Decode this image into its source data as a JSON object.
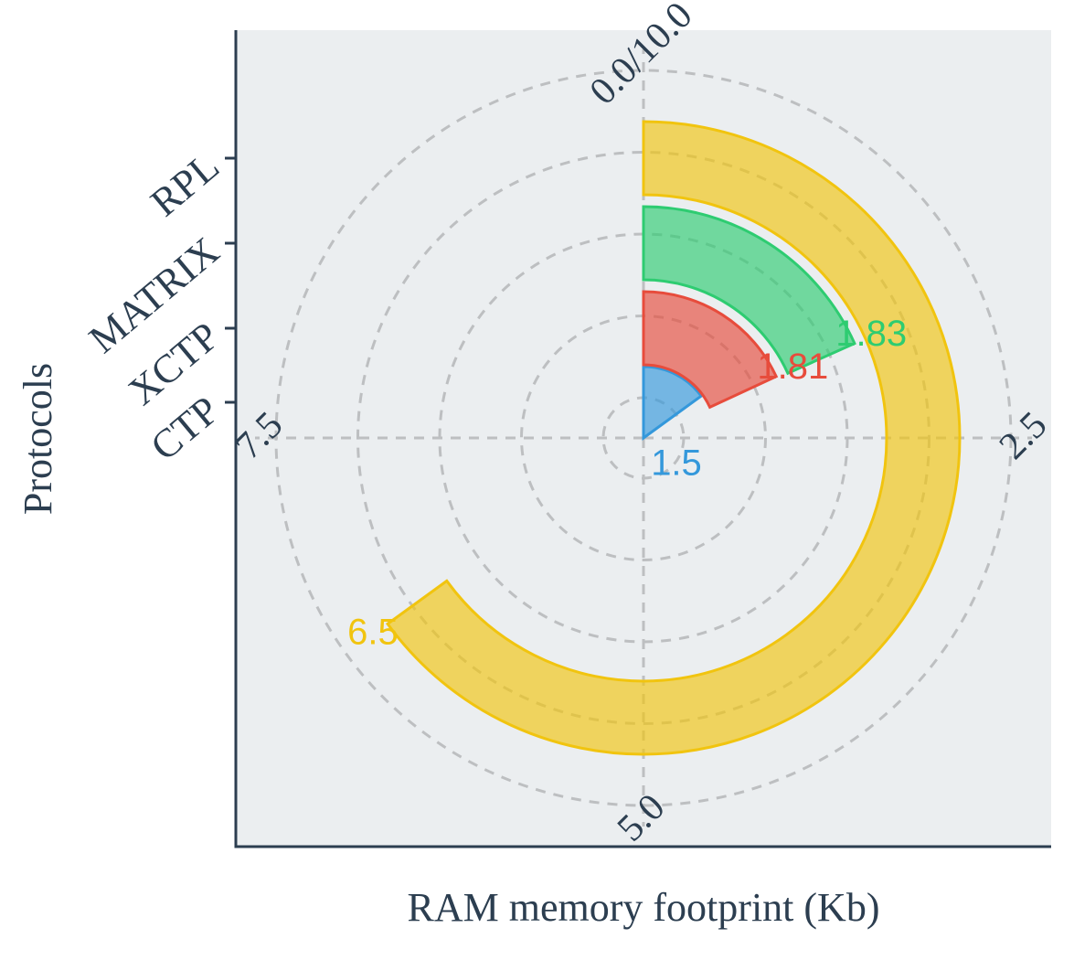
{
  "chart_data": {
    "type": "bar",
    "subtype": "radial-bar",
    "title": "",
    "xlabel": "RAM memory footprint (Kb)",
    "ylabel": "Protocols",
    "categories": [
      "CTP",
      "XCTP",
      "MATRIX",
      "RPL"
    ],
    "values": [
      1.5,
      1.81,
      1.83,
      6.5
    ],
    "value_labels": [
      "1.5",
      "1.81",
      "1.83",
      "6.5"
    ],
    "colors": [
      "#3498db",
      "#e74c3c",
      "#2ecc71",
      "#f1c40f"
    ],
    "angle_range": [
      0,
      10
    ],
    "angle_ticks": [
      "0.0/10.0",
      "2.5",
      "5.0",
      "7.5"
    ],
    "grid": true,
    "grid_style": "dashed"
  }
}
